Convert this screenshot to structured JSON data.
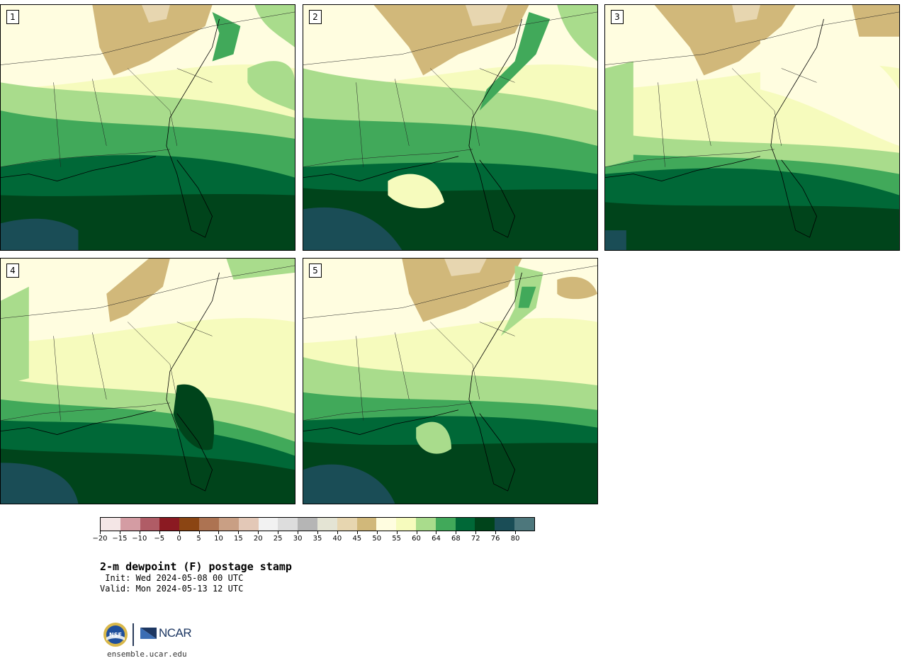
{
  "panels": [
    {
      "label": "1",
      "variant": 0
    },
    {
      "label": "2",
      "variant": 1
    },
    {
      "label": "3",
      "variant": 2
    },
    {
      "label": "4",
      "variant": 3
    },
    {
      "label": "5",
      "variant": 4
    }
  ],
  "colorbar": {
    "colors": [
      "#f4e6e6",
      "#d49ca3",
      "#b05c66",
      "#8b1a22",
      "#8b4513",
      "#ad7352",
      "#c99f84",
      "#e3c8b7",
      "#f2f2f2",
      "#dddddd",
      "#b5b5b5",
      "#e4e4d4",
      "#e7d6b0",
      "#d1b87a",
      "#fffde0",
      "#f6fbbd",
      "#a9dc8c",
      "#41a95a",
      "#006837",
      "#00441b",
      "#1a4d56",
      "#4d777c"
    ],
    "tick_labels": [
      "−20",
      "−15",
      "−10",
      "−5",
      "0",
      "5",
      "10",
      "15",
      "20",
      "25",
      "30",
      "35",
      "40",
      "45",
      "50",
      "55",
      "60",
      "64",
      "68",
      "72",
      "76",
      "80"
    ]
  },
  "title": "2-m dewpoint (F) postage stamp",
  "init": " Init: Wed 2024-05-08 00 UTC",
  "valid": "Valid: Mon 2024-05-13 12 UTC",
  "logos": {
    "nsf": "NSF",
    "ncar": "NCAR"
  },
  "url": "ensemble.ucar.edu"
}
